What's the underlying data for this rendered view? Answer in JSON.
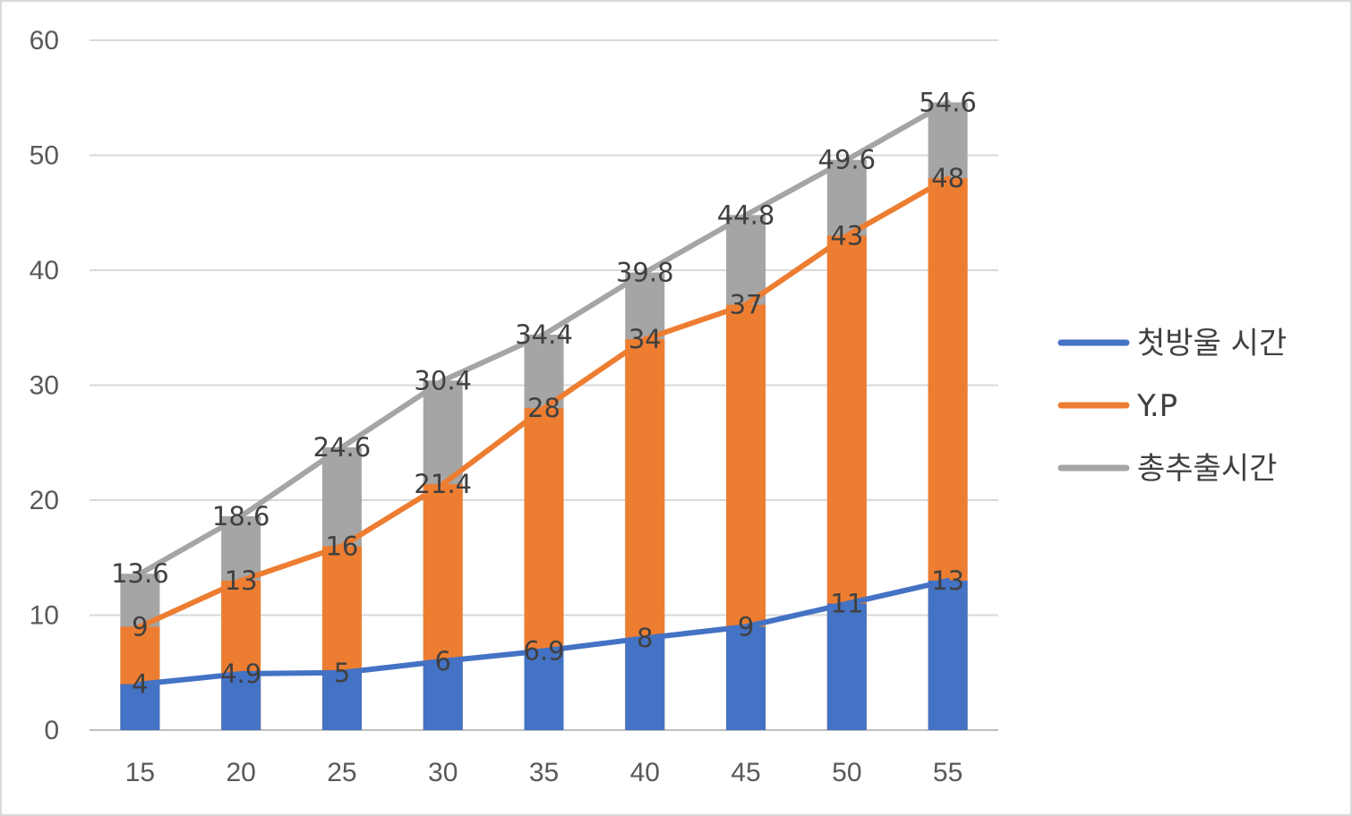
{
  "chart_data": {
    "type": "bar",
    "categories": [
      "15",
      "20",
      "25",
      "30",
      "35",
      "40",
      "45",
      "50",
      "55"
    ],
    "series": [
      {
        "name": "첫방울 시간",
        "values": [
          4,
          4.9,
          5,
          6,
          6.9,
          8,
          9,
          11,
          13
        ],
        "color": "#4472c4"
      },
      {
        "name": "Y.P",
        "values": [
          9,
          13,
          16,
          21.4,
          28,
          34,
          37,
          43,
          48
        ],
        "color": "#ed7d31"
      },
      {
        "name": "총추출시간",
        "values": [
          13.6,
          18.6,
          24.6,
          30.4,
          34.4,
          39.8,
          44.8,
          49.6,
          54.6
        ],
        "color": "#a5a5a5"
      }
    ],
    "y_ticks": [
      "0",
      "10",
      "20",
      "30",
      "40",
      "50",
      "60"
    ],
    "ylim": [
      0,
      60
    ],
    "grid": true,
    "legend_position": "right",
    "title": "",
    "xlabel": "",
    "ylabel": ""
  }
}
